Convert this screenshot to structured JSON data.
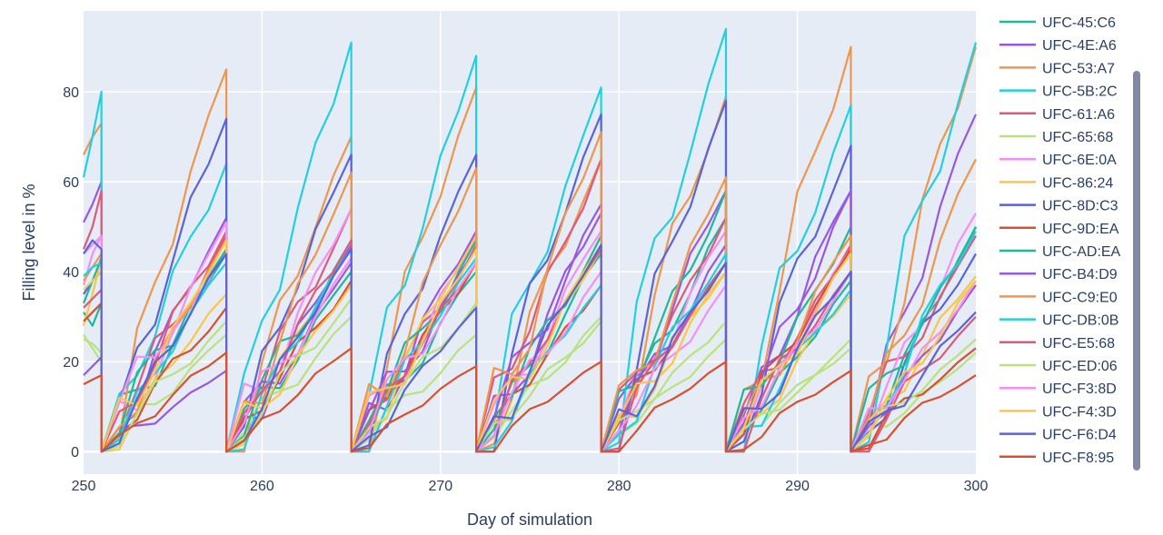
{
  "chart_data": {
    "type": "line",
    "title": "",
    "xlabel": "Day of simulation",
    "ylabel": "Filling level in %",
    "xlim": [
      250,
      300
    ],
    "ylim": [
      -5,
      98
    ],
    "x_ticks": [
      250,
      260,
      270,
      280,
      290,
      300
    ],
    "x_tick_labels": [
      "250",
      "260",
      "270",
      "280",
      "290",
      "300"
    ],
    "y_ticks": [
      0,
      20,
      40,
      60,
      80
    ],
    "y_tick_labels": [
      "0",
      "20",
      "40",
      "60",
      "80"
    ],
    "grid": true,
    "legend_position": "right",
    "reset_days": [
      251,
      258,
      265,
      272,
      279,
      286,
      293
    ],
    "series": [
      {
        "name": "UFC-45:C6",
        "color": "#1fb89a",
        "start": [
          31,
          28,
          33
        ]
      },
      {
        "name": "UFC-4E:A6",
        "color": "#9a57e0",
        "start": [
          51,
          55,
          60
        ]
      },
      {
        "name": "UFC-53:A7",
        "color": "#f0954c",
        "start": [
          66,
          70,
          73
        ]
      },
      {
        "name": "UFC-5B:2C",
        "color": "#22cfe0",
        "start": [
          61,
          70,
          80
        ]
      },
      {
        "name": "UFC-61:A6",
        "color": "#e0587a",
        "start": [
          45,
          50,
          58
        ]
      },
      {
        "name": "UFC-65:68",
        "color": "#b9e27d",
        "start": [
          26,
          23,
          20
        ]
      },
      {
        "name": "UFC-6E:0A",
        "color": "#f58ef5",
        "start": [
          37,
          44,
          48
        ]
      },
      {
        "name": "UFC-86:24",
        "color": "#f9c64a",
        "start": [
          28,
          35,
          43
        ]
      },
      {
        "name": "UFC-8D:C3",
        "color": "#5a63d8",
        "start": [
          35,
          38,
          40
        ]
      },
      {
        "name": "UFC-9D:EA",
        "color": "#d94f2f",
        "start": [
          29,
          31,
          33
        ]
      },
      {
        "name": "UFC-AD:EA",
        "color": "#1fb89a",
        "start": [
          33,
          38,
          43
        ]
      },
      {
        "name": "UFC-B4:D9",
        "color": "#9a57e0",
        "start": [
          17,
          19,
          21
        ]
      },
      {
        "name": "UFC-C9:E0",
        "color": "#f0954c",
        "start": [
          38,
          41,
          44
        ]
      },
      {
        "name": "UFC-DB:0B",
        "color": "#22cfe0",
        "start": [
          39,
          41,
          42
        ]
      },
      {
        "name": "UFC-E5:68",
        "color": "#e0587a",
        "start": [
          32,
          34,
          36
        ]
      },
      {
        "name": "UFC-ED:06",
        "color": "#b9e27d",
        "start": [
          25,
          24,
          22
        ]
      },
      {
        "name": "UFC-F3:8D",
        "color": "#f58ef5",
        "start": [
          44,
          46,
          48
        ]
      },
      {
        "name": "UFC-F4:3D",
        "color": "#f9c64a",
        "start": [
          36,
          38,
          40
        ]
      },
      {
        "name": "UFC-F6:D4",
        "color": "#5a63d8",
        "start": [
          44,
          47,
          45
        ]
      },
      {
        "name": "UFC-F8:95",
        "color": "#d94f2f",
        "start": [
          15,
          16,
          17
        ]
      }
    ],
    "cycle_peaks": [
      [
        44,
        40,
        40,
        44,
        52,
        38,
        50
      ],
      [
        52,
        46,
        49,
        53,
        58,
        58,
        75
      ],
      [
        85,
        70,
        81,
        65,
        79,
        90,
        90
      ],
      [
        64,
        91,
        88,
        81,
        94,
        77,
        91
      ],
      [
        48,
        54,
        46,
        65,
        52,
        46,
        48
      ],
      [
        26,
        30,
        26,
        30,
        25,
        25,
        22
      ],
      [
        45,
        54,
        47,
        49,
        49,
        45,
        53
      ],
      [
        35,
        45,
        48,
        45,
        40,
        35,
        39
      ],
      [
        74,
        66,
        66,
        75,
        78,
        68,
        44
      ],
      [
        32,
        38,
        42,
        37,
        42,
        45,
        23
      ],
      [
        45,
        47,
        47,
        48,
        58,
        50,
        50
      ],
      [
        18,
        42,
        45,
        55,
        46,
        58,
        37
      ],
      [
        47,
        62,
        63,
        71,
        61,
        48,
        65
      ],
      [
        42,
        45,
        43,
        37,
        44,
        36,
        49
      ],
      [
        49,
        47,
        42,
        45,
        42,
        40,
        30
      ],
      [
        29,
        34,
        33,
        29,
        29,
        23,
        25
      ],
      [
        51,
        43,
        42,
        40,
        37,
        40,
        38
      ],
      [
        47,
        37,
        45,
        46,
        40,
        44,
        38
      ],
      [
        44,
        45,
        32,
        46,
        42,
        40,
        31
      ],
      [
        22,
        23,
        19,
        20,
        20,
        18,
        17
      ]
    ]
  }
}
